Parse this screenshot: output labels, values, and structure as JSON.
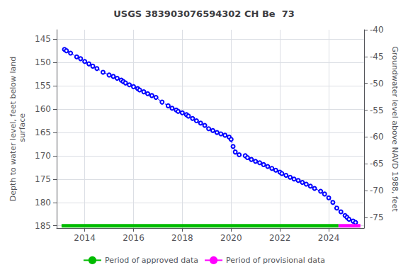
{
  "chart_data": {
    "type": "line",
    "title": "USGS 383903076594302 CH Be  73",
    "ylabel": "Depth to water level, feet below land\n surface",
    "y2label": "Groundwater level above NAVD 1988, feet",
    "x": [
      2013.17,
      2013.25,
      2013.42,
      2013.67,
      2013.83,
      2014.0,
      2014.17,
      2014.33,
      2014.5,
      2014.75,
      2015.0,
      2015.17,
      2015.33,
      2015.5,
      2015.58,
      2015.67,
      2015.83,
      2016.0,
      2016.17,
      2016.25,
      2016.42,
      2016.58,
      2016.75,
      2016.92,
      2017.17,
      2017.42,
      2017.58,
      2017.75,
      2017.83,
      2018.0,
      2018.17,
      2018.25,
      2018.42,
      2018.58,
      2018.75,
      2018.92,
      2019.08,
      2019.25,
      2019.42,
      2019.58,
      2019.75,
      2019.92,
      2020.0,
      2020.08,
      2020.17,
      2020.33,
      2020.58,
      2020.67,
      2020.83,
      2021.0,
      2021.17,
      2021.33,
      2021.5,
      2021.67,
      2021.83,
      2022.0,
      2022.08,
      2022.25,
      2022.42,
      2022.58,
      2022.75,
      2022.92,
      2023.08,
      2023.25,
      2023.42,
      2023.67,
      2023.83,
      2024.0,
      2024.17,
      2024.33,
      2024.5,
      2024.67,
      2024.75,
      2024.83,
      2025.0,
      2025.1
    ],
    "series": [
      {
        "color": "#0000ff",
        "line_style": "dashed",
        "marker": "circle",
        "values": [
          147.2,
          147.5,
          148.0,
          148.8,
          149.2,
          149.8,
          150.3,
          150.8,
          151.3,
          152.1,
          152.7,
          153.0,
          153.4,
          153.8,
          154.1,
          154.4,
          154.8,
          155.2,
          155.6,
          155.9,
          156.3,
          156.7,
          157.1,
          157.5,
          158.5,
          159.3,
          159.8,
          160.2,
          160.5,
          160.8,
          161.2,
          161.5,
          162.0,
          162.5,
          163.0,
          163.5,
          164.2,
          164.6,
          165.0,
          165.3,
          165.6,
          166.0,
          166.5,
          168.0,
          169.2,
          169.8,
          170.0,
          170.4,
          170.8,
          171.2,
          171.5,
          171.9,
          172.3,
          172.7,
          173.1,
          173.5,
          173.8,
          174.2,
          174.6,
          175.0,
          175.3,
          175.7,
          176.1,
          176.5,
          177.0,
          177.6,
          178.2,
          179.0,
          180.0,
          181.2,
          182.0,
          182.8,
          183.2,
          183.6,
          184.0,
          184.3
        ]
      },
      {
        "name": "Period of approved data",
        "color": "#00bb00",
        "line_style": "solid",
        "x": [
          2013.05,
          2024.4
        ],
        "values": [
          185.0,
          185.0
        ]
      },
      {
        "name": "Period of provisional data",
        "color": "#ff00ff",
        "line_style": "solid",
        "x": [
          2024.4,
          2025.3
        ],
        "values": [
          185.0,
          185.0
        ]
      }
    ],
    "xlim": [
      2012.85,
      2025.45
    ],
    "xticks": [
      2014,
      2016,
      2018,
      2020,
      2022,
      2024
    ],
    "ylim": [
      185.5,
      143.0
    ],
    "yticks": [
      145,
      150,
      155,
      160,
      165,
      170,
      175,
      180,
      185
    ],
    "y2lim": [
      -77.0,
      -40.0
    ],
    "y2ticks": [
      -40,
      -45,
      -50,
      -55,
      -60,
      -65,
      -70,
      -75
    ],
    "grid": true,
    "legend": "bottom"
  }
}
